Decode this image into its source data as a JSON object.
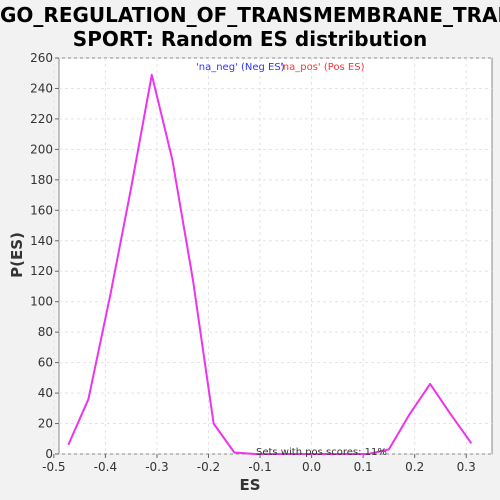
{
  "chart_data": {
    "type": "line",
    "title_line1": "GO_REGULATION_OF_TRANSMEMBRANE_TRAN",
    "title_line2": "SPORT: Random ES distribution",
    "xlabel": "ES",
    "ylabel": "P(ES)",
    "xlim": [
      -0.49,
      0.35
    ],
    "ylim": [
      0,
      260
    ],
    "xticks": [
      -0.5,
      -0.4,
      -0.3,
      -0.2,
      -0.1,
      0.0,
      0.1,
      0.2,
      0.3
    ],
    "xtick_labels": [
      "-0.5",
      "-0.4",
      "-0.3",
      "-0.2",
      "-0.1",
      "0.0",
      "0.1",
      "0.2",
      "0.3"
    ],
    "yticks": [
      0,
      20,
      40,
      60,
      80,
      100,
      120,
      140,
      160,
      180,
      200,
      220,
      240,
      260
    ],
    "grid": true,
    "legend": [
      {
        "label": "'na_neg' (Neg ES)",
        "color": "#3333ff"
      },
      {
        "label": "'na_pos' (Pos ES)",
        "color": "#ff3333"
      }
    ],
    "annotation": "Sets with pos scores: 11%",
    "series": [
      {
        "color": "#ee33ee",
        "x": [
          -0.472,
          -0.433,
          -0.39,
          -0.35,
          -0.31,
          -0.27,
          -0.23,
          -0.19,
          -0.15,
          -0.11,
          -0.07,
          -0.03,
          0.01,
          0.05,
          0.09,
          0.11,
          0.15,
          0.19,
          0.23,
          0.27,
          0.31
        ],
        "y": [
          6,
          36,
          105,
          175,
          249,
          193,
          114,
          20,
          1,
          0,
          0,
          0,
          0,
          0,
          0,
          0,
          3,
          26,
          46,
          26,
          7
        ]
      }
    ]
  }
}
